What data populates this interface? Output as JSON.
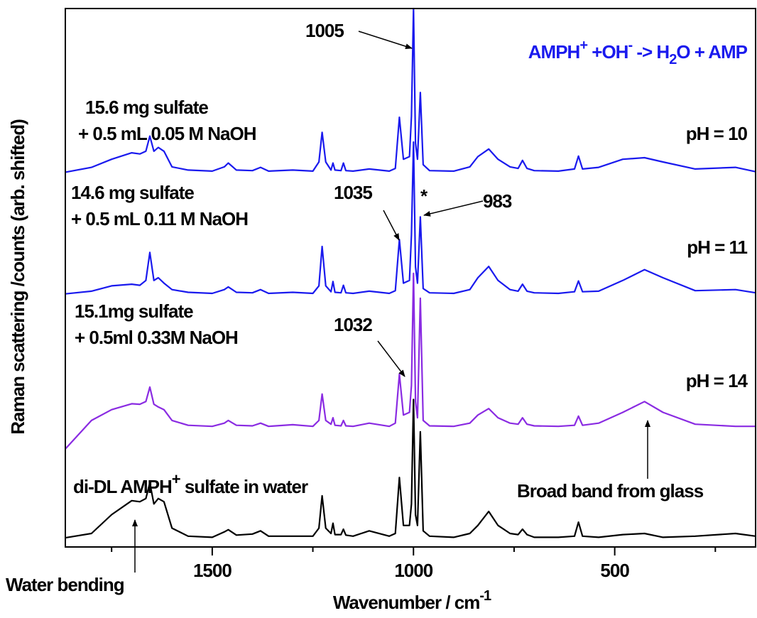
{
  "chart_data": {
    "type": "line",
    "xlabel": [
      "Wavenumber / cm",
      "-1"
    ],
    "ylabel": "Raman scattering /counts (arb. shifted)",
    "xlim": [
      1865,
      150
    ],
    "ylim": [
      0,
      100
    ],
    "xticks": [
      1500,
      1000,
      500
    ],
    "xminor_ticks": [
      1750,
      1250,
      750,
      250
    ],
    "x": [
      1865,
      1800,
      1750,
      1700,
      1680,
      1665,
      1655,
      1645,
      1634,
      1620,
      1600,
      1560,
      1500,
      1470,
      1460,
      1440,
      1400,
      1380,
      1360,
      1300,
      1250,
      1235,
      1227,
      1218,
      1205,
      1200,
      1195,
      1180,
      1174,
      1168,
      1150,
      1110,
      1060,
      1045,
      1035,
      1025,
      1010,
      1005,
      1000,
      995,
      990,
      983,
      976,
      960,
      900,
      860,
      840,
      813,
      790,
      760,
      740,
      729,
      718,
      700,
      640,
      600,
      590,
      580,
      540,
      480,
      426,
      380,
      300,
      200,
      150
    ],
    "series": [
      {
        "name": "di-DL AMPH+ sulfate in water",
        "color": "#000000",
        "values": [
          1.7,
          2.5,
          6,
          8.6,
          8.4,
          9,
          11.9,
          8,
          9,
          8.4,
          3.5,
          2,
          1.8,
          2.8,
          3.2,
          2.2,
          2.4,
          3,
          2,
          2,
          2,
          3.5,
          9.5,
          3.5,
          2.5,
          4.4,
          2.3,
          2.3,
          3.3,
          2.2,
          2,
          3,
          2,
          2.5,
          12.9,
          4,
          4,
          8,
          27.4,
          6,
          4,
          21.4,
          3,
          2,
          1.8,
          2.5,
          4,
          6.6,
          4,
          2.5,
          2.3,
          3.3,
          2.3,
          1.8,
          1.8,
          2,
          4.6,
          2,
          1.8,
          2.3,
          2.5,
          1.8,
          2,
          2.5,
          2
        ]
      },
      {
        "name": "pH = 14",
        "color": "#8a2be2",
        "values": [
          18.2,
          23.5,
          25.5,
          26.6,
          26.5,
          27,
          29.7,
          26.5,
          26,
          25.5,
          23.5,
          22.6,
          22.4,
          23,
          23.5,
          22.6,
          22.5,
          23,
          22.4,
          22.7,
          22.4,
          23.5,
          28.4,
          23.5,
          22.8,
          24,
          22.6,
          22.5,
          23.5,
          22.5,
          22.4,
          23,
          22.4,
          23,
          32.1,
          24.5,
          25,
          30,
          50.8,
          27,
          24,
          46.2,
          23.5,
          22.5,
          22.4,
          23,
          24.5,
          25.7,
          24,
          23,
          22.8,
          24,
          22.8,
          22.5,
          22.4,
          22.6,
          24.3,
          22.6,
          23,
          25,
          27,
          25,
          22.8,
          22.4,
          22.4
        ]
      },
      {
        "name": "pH = 11",
        "color": "#1a1aee",
        "values": [
          47,
          47.5,
          48.5,
          48.8,
          48.6,
          49.5,
          54.7,
          49.5,
          50,
          49,
          47.8,
          47.3,
          47.1,
          47.8,
          48.3,
          47.3,
          47.2,
          47.8,
          47.1,
          47.3,
          47.1,
          48.5,
          55.8,
          48.5,
          47.4,
          49.3,
          47.3,
          47.2,
          48.6,
          47.2,
          47.1,
          47.5,
          47.1,
          47.6,
          57.1,
          49,
          49.5,
          58,
          75.2,
          52,
          49,
          61.3,
          48,
          47.2,
          47.1,
          47.8,
          50,
          52.1,
          49.5,
          47.8,
          47.5,
          48.8,
          47.5,
          47.2,
          47.1,
          47.4,
          49.4,
          47.4,
          47.5,
          49.5,
          51.5,
          50,
          47.6,
          47.8,
          47.2
        ]
      },
      {
        "name": "pH = 10",
        "color": "#1a1aee",
        "values": [
          69.6,
          70.5,
          72,
          73.2,
          73,
          73.5,
          76.3,
          73.5,
          74.2,
          73.5,
          70.6,
          70,
          69.8,
          70.6,
          71.3,
          70,
          69.9,
          70.5,
          69.8,
          70,
          69.8,
          71.5,
          77,
          71.5,
          70,
          71.3,
          70,
          69.9,
          71.3,
          69.9,
          69.8,
          70.2,
          69.8,
          70.3,
          79.8,
          72,
          72.5,
          80,
          100,
          75,
          72,
          84.4,
          71,
          69.9,
          69.8,
          70.6,
          72.5,
          73.9,
          72,
          70.6,
          70.3,
          71.8,
          70.3,
          69.9,
          69.8,
          70.2,
          72.6,
          70.2,
          70.5,
          72,
          72.3,
          71.5,
          70.2,
          70.5,
          69.7
        ]
      }
    ],
    "series_labels": [
      "pH = 14",
      "pH = 11",
      "pH = 10"
    ],
    "sample_labels": [
      [
        "15.6 mg sulfate",
        "+ 0.5 mL 0.05 M NaOH"
      ],
      [
        "14.6 mg sulfate",
        "+ 0.5 mL 0.11 M NaOH"
      ],
      [
        "15.1mg sulfate",
        "+ 0.5ml 0.33M NaOH"
      ]
    ],
    "black_label": [
      "di-DL AMPH",
      "+",
      " sulfate in water"
    ],
    "reaction": [
      "AMPH",
      "+",
      " +OH",
      "-",
      " -> H",
      "2",
      "O + AMP"
    ],
    "annotations": [
      "1005",
      "1035",
      "983",
      "1032",
      "*",
      "Broad band from glass",
      "Water bending"
    ]
  }
}
